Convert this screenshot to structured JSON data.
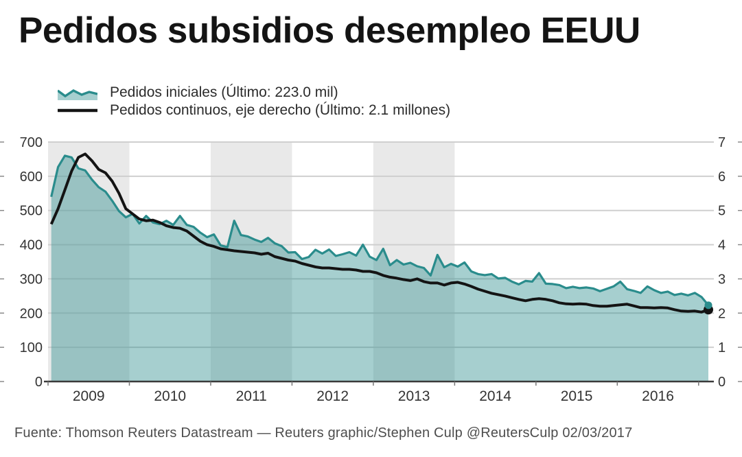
{
  "title": "Pedidos subsidios desempleo EEUU",
  "legend": {
    "items": [
      {
        "label": "Pedidos iniciales (Último: 223.0 mil)",
        "swatch": "teal-area-line",
        "color": "#2a8c8c"
      },
      {
        "label": "Pedidos continuos, eje derecho (Último: 2.1 millones)",
        "swatch": "black-line",
        "color": "#141414"
      }
    ]
  },
  "footer": "Fuente: Thomson Reuters Datastream — Reuters graphic/Stephen Culp @ReutersCulp 02/03/2017",
  "style": {
    "teal_line": "#2a8c8c",
    "teal_fill": "rgba(42,140,140,0.42)",
    "black_line": "#141414",
    "band_color": "#e9e9e9",
    "grid_color": "#cfcfcf",
    "axis_color": "#3a3a3a",
    "tick_color": "#777777",
    "label_color": "#333333"
  },
  "chart_data": {
    "type": "area+line",
    "title": "Pedidos subsidios desempleo EEUU",
    "x_unit": "year, points at ~monthly (weekly-style) intervals",
    "x_start_year": 2009.04,
    "x_step_years": 0.0833,
    "x_range": [
      2009,
      2017.12
    ],
    "x_ticks": [
      2009,
      2010,
      2011,
      2012,
      2013,
      2014,
      2015,
      2016
    ],
    "shaded_years": [
      2009,
      2011,
      2013
    ],
    "grid": "horizontal",
    "legend_position": "top-left",
    "left_axis": {
      "min": 0,
      "max": 700,
      "ticks": [
        0,
        100,
        200,
        300,
        400,
        500,
        600,
        700
      ],
      "unit": "miles (thousands of initial claims)"
    },
    "right_axis": {
      "min": 0,
      "max": 7,
      "ticks": [
        0,
        1,
        2,
        3,
        4,
        5,
        6,
        7
      ],
      "unit": "millones (millions of continuing claims)"
    },
    "series": [
      {
        "name": "Pedidos iniciales",
        "axis": "left",
        "unit": "mil",
        "last_label": "223.0 mil",
        "end_dot": true,
        "values": [
          540,
          627,
          660,
          655,
          623,
          617,
          590,
          568,
          555,
          528,
          498,
          480,
          490,
          462,
          484,
          465,
          460,
          470,
          458,
          484,
          458,
          452,
          435,
          422,
          430,
          398,
          393,
          470,
          428,
          424,
          415,
          408,
          420,
          404,
          396,
          377,
          378,
          358,
          364,
          385,
          374,
          386,
          367,
          372,
          378,
          368,
          400,
          365,
          355,
          388,
          340,
          355,
          342,
          347,
          337,
          332,
          310,
          370,
          334,
          344,
          336,
          348,
          322,
          314,
          311,
          314,
          301,
          303,
          292,
          284,
          294,
          292,
          317,
          286,
          285,
          282,
          273,
          277,
          273,
          275,
          272,
          264,
          271,
          278,
          292,
          270,
          265,
          259,
          278,
          267,
          259,
          263,
          253,
          257,
          252,
          259,
          247,
          223
        ]
      },
      {
        "name": "Pedidos continuos, eje derecho",
        "axis": "right",
        "unit": "millones",
        "last_label": "2.1 millones",
        "end_dot": true,
        "values": [
          4.6,
          5.05,
          5.6,
          6.15,
          6.55,
          6.65,
          6.45,
          6.2,
          6.1,
          5.85,
          5.5,
          5.05,
          4.9,
          4.75,
          4.7,
          4.72,
          4.65,
          4.55,
          4.5,
          4.48,
          4.4,
          4.25,
          4.1,
          4.0,
          3.95,
          3.88,
          3.85,
          3.82,
          3.8,
          3.78,
          3.76,
          3.72,
          3.75,
          3.65,
          3.6,
          3.55,
          3.52,
          3.45,
          3.4,
          3.35,
          3.32,
          3.32,
          3.3,
          3.28,
          3.28,
          3.26,
          3.22,
          3.22,
          3.18,
          3.1,
          3.05,
          3.02,
          2.98,
          2.95,
          3.0,
          2.92,
          2.88,
          2.88,
          2.82,
          2.88,
          2.9,
          2.85,
          2.78,
          2.7,
          2.64,
          2.58,
          2.54,
          2.5,
          2.45,
          2.4,
          2.36,
          2.4,
          2.42,
          2.4,
          2.36,
          2.3,
          2.27,
          2.26,
          2.27,
          2.26,
          2.22,
          2.2,
          2.2,
          2.22,
          2.24,
          2.26,
          2.21,
          2.16,
          2.16,
          2.15,
          2.16,
          2.15,
          2.1,
          2.06,
          2.05,
          2.06,
          2.03,
          2.1
        ]
      }
    ]
  }
}
